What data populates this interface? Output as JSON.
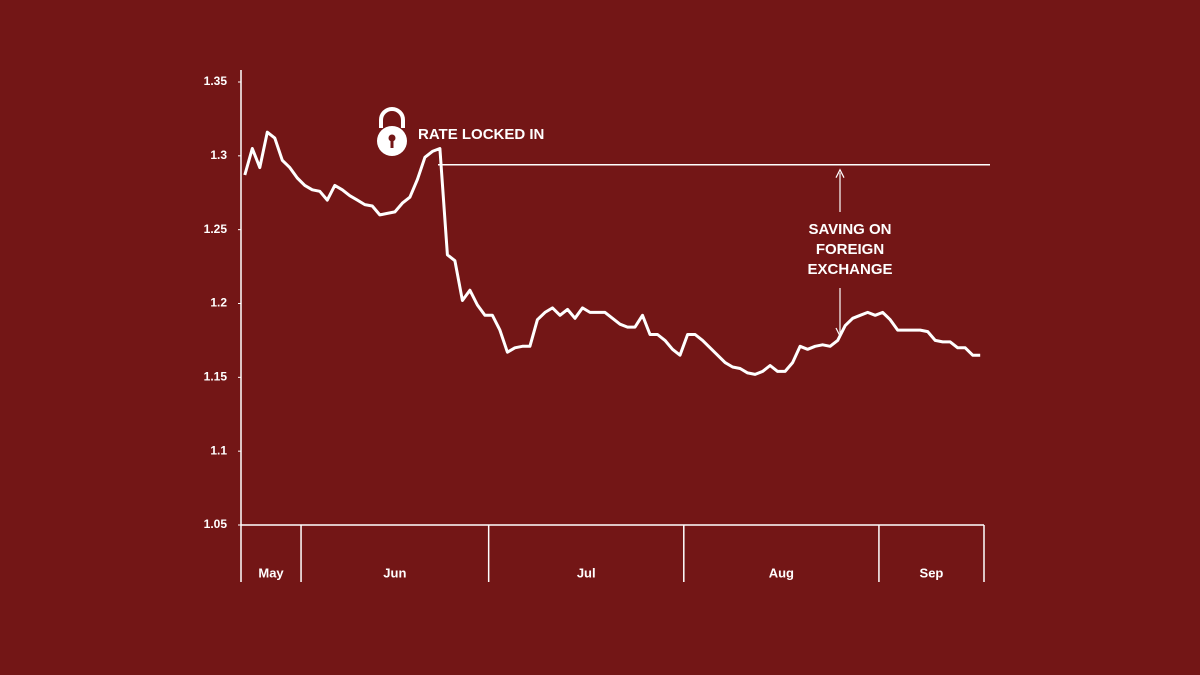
{
  "chart_data": {
    "type": "line",
    "categories": [
      "May",
      "Jun",
      "Jul",
      "Aug",
      "Sep"
    ],
    "values": [
      [
        1.287,
        1.305,
        1.292,
        1.316,
        1.312,
        1.297,
        1.292,
        1.285
      ],
      [
        1.28,
        1.277,
        1.276,
        1.27,
        1.28,
        1.277,
        1.273,
        1.27,
        1.267,
        1.266,
        1.26,
        1.261,
        1.262,
        1.268,
        1.272,
        1.284,
        1.299,
        1.303,
        1.305,
        1.233,
        1.229,
        1.202,
        1.209,
        1.199,
        1.192
      ],
      [
        1.192,
        1.182,
        1.167,
        1.17,
        1.171,
        1.171,
        1.189,
        1.194,
        1.197,
        1.192,
        1.196,
        1.19,
        1.197,
        1.194,
        1.194,
        1.194,
        1.19,
        1.186,
        1.184,
        1.184,
        1.192,
        1.179,
        1.179,
        1.175,
        1.169,
        1.165
      ],
      [
        1.179,
        1.179,
        1.175,
        1.17,
        1.165,
        1.16,
        1.157,
        1.156,
        1.153,
        1.152,
        1.154,
        1.158,
        1.154,
        1.154,
        1.16,
        1.171,
        1.169,
        1.171,
        1.172,
        1.171,
        1.175,
        1.185,
        1.19,
        1.192,
        1.194,
        1.192
      ],
      [
        1.194,
        1.189,
        1.182,
        1.182,
        1.182,
        1.182,
        1.181,
        1.175,
        1.174,
        1.174,
        1.17,
        1.17,
        1.165,
        1.165
      ]
    ],
    "color": "#ffffff",
    "ylim": [
      1.05,
      1.35
    ],
    "yticks": [
      1.05,
      1.1,
      1.15,
      1.2,
      1.25,
      1.3,
      1.35
    ],
    "annotations": {
      "locked": {
        "text": "RATE LOCKED IN",
        "value": 1.294
      },
      "saving": [
        "SAVING ON",
        "FOREIGN",
        "EXCHANGE"
      ]
    }
  }
}
